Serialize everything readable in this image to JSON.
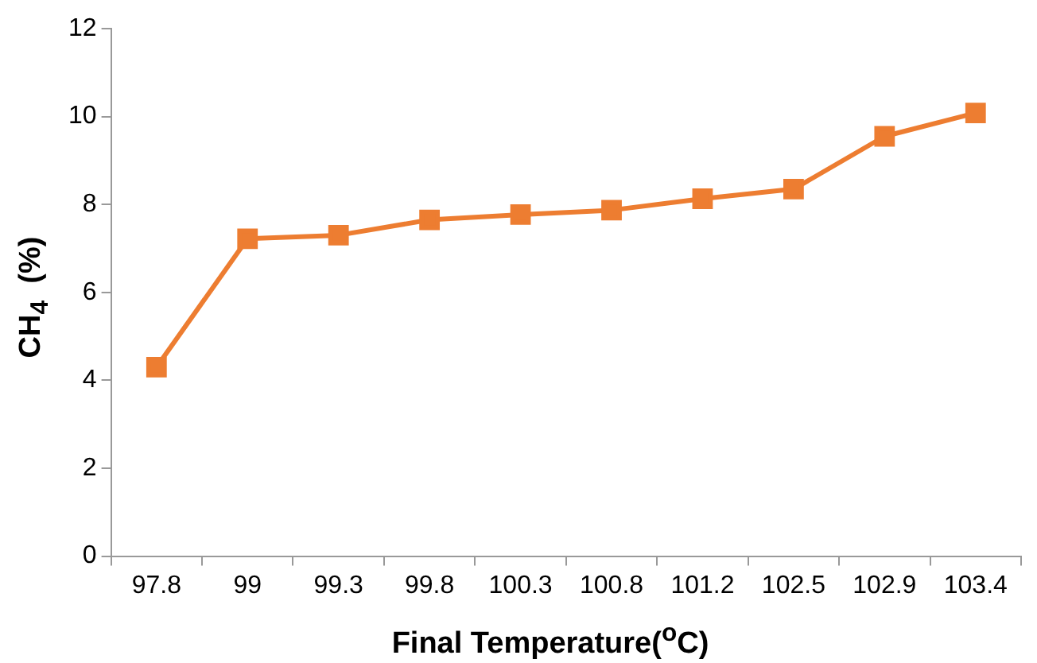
{
  "chart_data": {
    "type": "line",
    "xlabel": "Final Temperature($^{o}$C)",
    "ylabel": "CH$_{4}$  (%)",
    "categories": [
      "97.8",
      "99",
      "99.3",
      "99.8",
      "100.3",
      "100.8",
      "101.2",
      "102.5",
      "102.9",
      "103.4"
    ],
    "series": [
      {
        "color": "#ed7d31",
        "values": [
          4.3,
          7.22,
          7.3,
          7.65,
          7.77,
          7.87,
          8.13,
          8.35,
          9.55,
          10.08
        ]
      }
    ],
    "ylim": [
      0,
      12
    ],
    "yticks": [
      0,
      2,
      4,
      6,
      8,
      10,
      12
    ],
    "grid": false,
    "legend": false,
    "marker": "square",
    "line_style": "solid"
  }
}
